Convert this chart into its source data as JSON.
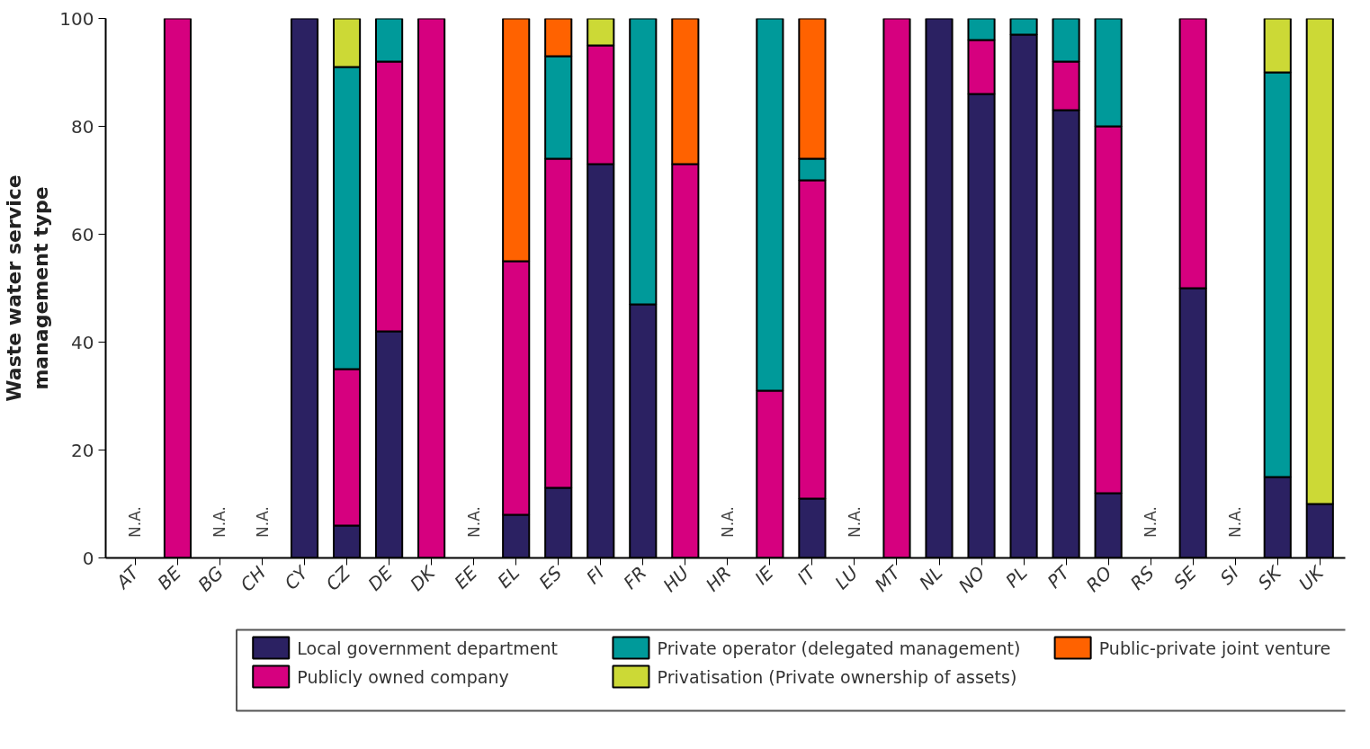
{
  "chart_data": {
    "type": "bar",
    "stacked": true,
    "ylabel": "Waste water service\nmanagement type",
    "categories": [
      "AT",
      "BE",
      "BG",
      "CH",
      "CY",
      "CZ",
      "DE",
      "DK",
      "EE",
      "EL",
      "ES",
      "FI",
      "FR",
      "HU",
      "HR",
      "IE",
      "IT",
      "LU",
      "MT",
      "NL",
      "NO",
      "PL",
      "PT",
      "RO",
      "RS",
      "SE",
      "SI",
      "SK",
      "UK"
    ],
    "series": [
      {
        "name": "Local government department",
        "color": "#2b2162",
        "values": [
          null,
          0,
          null,
          null,
          100,
          6,
          42,
          0,
          null,
          8,
          13,
          73,
          47,
          0,
          null,
          0,
          11,
          null,
          0,
          100,
          86,
          97,
          83,
          12,
          null,
          50,
          null,
          15,
          10
        ]
      },
      {
        "name": "Publicly owned company",
        "color": "#d6007f",
        "values": [
          null,
          100,
          null,
          null,
          0,
          29,
          50,
          100,
          null,
          47,
          61,
          22,
          0,
          73,
          null,
          31,
          59,
          null,
          100,
          0,
          10,
          0,
          9,
          68,
          null,
          50,
          null,
          0,
          0
        ]
      },
      {
        "name": "Private operator (delegated management)",
        "color": "#009a9a",
        "values": [
          null,
          0,
          null,
          null,
          0,
          56,
          8,
          0,
          null,
          0,
          19,
          0,
          53,
          0,
          null,
          69,
          4,
          null,
          0,
          0,
          4,
          3,
          8,
          20,
          null,
          0,
          null,
          75,
          0
        ]
      },
      {
        "name": "Privatisation (Private ownership of assets)",
        "color": "#ccd936",
        "values": [
          null,
          0,
          null,
          null,
          0,
          9,
          0,
          0,
          null,
          0,
          0,
          5,
          0,
          0,
          null,
          0,
          0,
          null,
          0,
          0,
          0,
          0,
          0,
          0,
          null,
          0,
          null,
          10,
          90
        ]
      },
      {
        "name": "Public-private joint venture",
        "color": "#ff6200",
        "values": [
          null,
          0,
          null,
          null,
          0,
          0,
          0,
          0,
          null,
          45,
          7,
          0,
          0,
          27,
          null,
          0,
          26,
          null,
          0,
          0,
          0,
          0,
          0,
          0,
          null,
          0,
          null,
          0,
          0
        ]
      }
    ],
    "ylim": [
      0,
      100
    ],
    "yticks": [
      0,
      20,
      40,
      60,
      80,
      100
    ],
    "grid": false,
    "legend": "bottom",
    "annotations": [
      "N.A.",
      "N.A.",
      "N.A.",
      "N.A.",
      "N.A.",
      "N.A.",
      "N.A.",
      "N.A."
    ]
  }
}
